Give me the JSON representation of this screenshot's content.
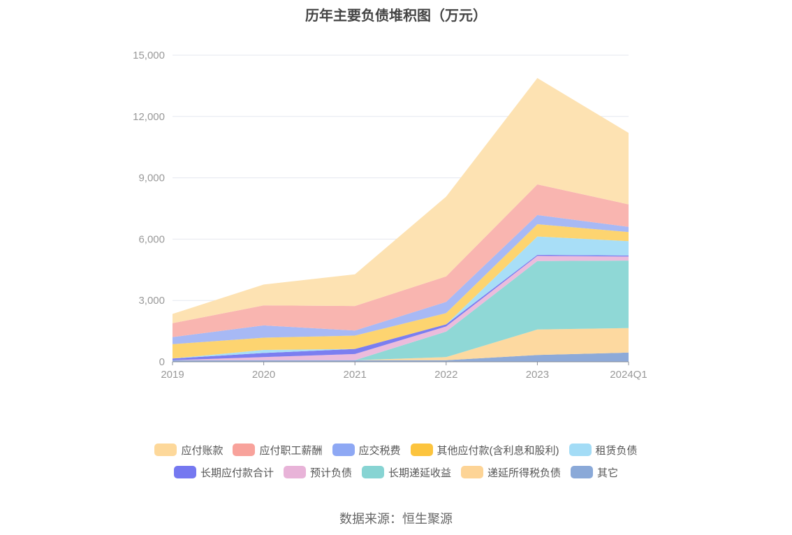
{
  "title": "历年主要负债堆积图（万元）",
  "source": "数据来源：恒生聚源",
  "chart_data": {
    "type": "area",
    "stacked": true,
    "categories": [
      "2019",
      "2020",
      "2021",
      "2022",
      "2023",
      "2024Q1"
    ],
    "ylim": [
      0,
      15000
    ],
    "yticks": [
      "0",
      "3,000",
      "6,000",
      "9,000",
      "12,000",
      "15,000"
    ],
    "grid": true,
    "legend_position": "bottom",
    "series": [
      {
        "name": "其它",
        "color": "#8eaad8",
        "values": [
          80,
          80,
          80,
          80,
          330,
          450
        ]
      },
      {
        "name": "递延所得税负债",
        "color": "#fdd9a0",
        "values": [
          0,
          0,
          0,
          150,
          1250,
          1200
        ]
      },
      {
        "name": "长期递延收益",
        "color": "#8fd8d6",
        "values": [
          0,
          0,
          0,
          1250,
          3350,
          3300
        ]
      },
      {
        "name": "预计负债",
        "color": "#ebbcdc",
        "values": [
          0,
          150,
          300,
          250,
          250,
          200
        ]
      },
      {
        "name": "长期应付款合计",
        "color": "#7b7ef0",
        "values": [
          80,
          200,
          250,
          100,
          50,
          50
        ]
      },
      {
        "name": "租赁负债",
        "color": "#a8def7",
        "values": [
          0,
          150,
          0,
          0,
          900,
          700
        ]
      },
      {
        "name": "其他应付款(含利息和股利)",
        "color": "#fdd470",
        "values": [
          700,
          600,
          650,
          550,
          600,
          450
        ]
      },
      {
        "name": "应交税费",
        "color": "#a7b9f5",
        "values": [
          350,
          600,
          250,
          550,
          450,
          250
        ]
      },
      {
        "name": "应付职工薪酬",
        "color": "#f9b5b0",
        "values": [
          680,
          980,
          1200,
          1250,
          1500,
          1100
        ]
      },
      {
        "name": "应付账款",
        "color": "#fde2b2",
        "values": [
          450,
          1020,
          1550,
          3900,
          5200,
          3500
        ]
      }
    ],
    "legend_order": [
      "应付账款",
      "应付职工薪酬",
      "应交税费",
      "其他应付款(含利息和股利)",
      "租赁负债",
      "长期应付款合计",
      "预计负债",
      "长期递延收益",
      "递延所得税负债",
      "其它"
    ],
    "legend_colors": {
      "应付账款": "#fdd89a",
      "应付职工薪酬": "#f8a29b",
      "应交税费": "#8ea8f4",
      "其他应付款(含利息和股利)": "#fcc43e",
      "租赁负债": "#a3dcf6",
      "长期应付款合计": "#7578f0",
      "预计负债": "#e8b3d8",
      "长期递延收益": "#87d4d3",
      "递延所得税负债": "#fdd496",
      "其它": "#8aa9d8"
    }
  }
}
